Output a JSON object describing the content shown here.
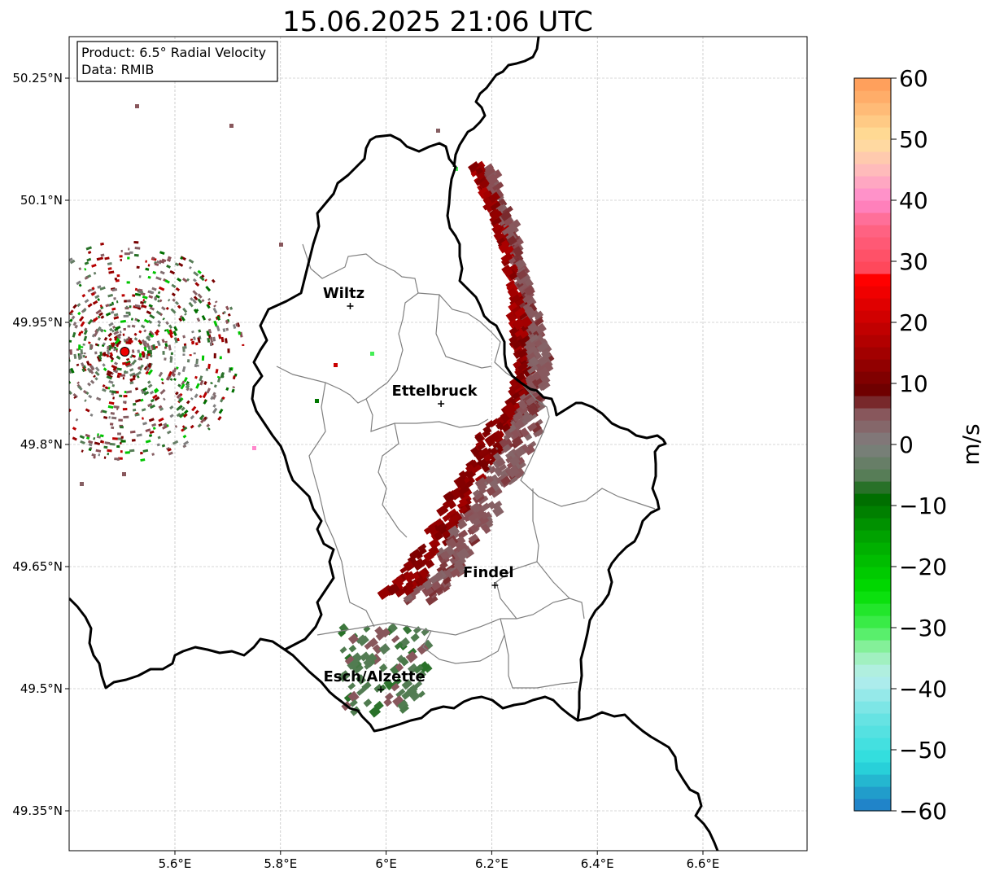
{
  "title": "15.06.2025 21:06 UTC",
  "info_box": {
    "product_line": "Product: 6.5° Radial Velocity",
    "data_line": "Data: RMIB"
  },
  "map": {
    "lon_range": [
      5.4,
      6.8
    ],
    "lat_range": [
      49.3,
      50.3
    ],
    "lon_ticks": [
      {
        "value": 5.6,
        "label": "5.6°E"
      },
      {
        "value": 5.8,
        "label": "5.8°E"
      },
      {
        "value": 6.0,
        "label": "6°E"
      },
      {
        "value": 6.2,
        "label": "6.2°E"
      },
      {
        "value": 6.4,
        "label": "6.4°E"
      },
      {
        "value": 6.6,
        "label": "6.6°E"
      }
    ],
    "lat_ticks": [
      {
        "value": 50.25,
        "label": "50.25°N"
      },
      {
        "value": 50.1,
        "label": "50.1°N"
      },
      {
        "value": 49.95,
        "label": "49.95°N"
      },
      {
        "value": 49.8,
        "label": "49.8°N"
      },
      {
        "value": 49.65,
        "label": "49.65°N"
      },
      {
        "value": 49.5,
        "label": "49.5°N"
      },
      {
        "value": 49.35,
        "label": "49.35°N"
      }
    ],
    "grid": true,
    "radar_site": {
      "lon": 5.505,
      "lat": 49.914
    },
    "cities": [
      {
        "name": "Wiltz",
        "lon": 5.932,
        "lat": 49.97
      },
      {
        "name": "Ettelbruck",
        "lon": 6.104,
        "lat": 49.85
      },
      {
        "name": "Findel",
        "lon": 6.206,
        "lat": 49.627
      },
      {
        "name": "Esch/Alzette",
        "lon": 5.99,
        "lat": 49.499
      }
    ]
  },
  "colorbar": {
    "label": "m/s",
    "range": [
      -60,
      60
    ],
    "ticks": [
      {
        "value": 60,
        "label": "60"
      },
      {
        "value": 50,
        "label": "50"
      },
      {
        "value": 40,
        "label": "40"
      },
      {
        "value": 30,
        "label": "30"
      },
      {
        "value": 20,
        "label": "20"
      },
      {
        "value": 10,
        "label": "10"
      },
      {
        "value": 0,
        "label": "0"
      },
      {
        "value": -10,
        "label": "−10"
      },
      {
        "value": -20,
        "label": "−20"
      },
      {
        "value": -30,
        "label": "−30"
      },
      {
        "value": -40,
        "label": "−40"
      },
      {
        "value": -50,
        "label": "−50"
      },
      {
        "value": -60,
        "label": "−60"
      }
    ],
    "color_stops": [
      {
        "value": -60,
        "color": "#1f77c8"
      },
      {
        "value": -56,
        "color": "#22aacc"
      },
      {
        "value": -52,
        "color": "#2adddd"
      },
      {
        "value": -45,
        "color": "#66e3e3"
      },
      {
        "value": -38,
        "color": "#b8eeee"
      },
      {
        "value": -34,
        "color": "#99f0b0"
      },
      {
        "value": -30,
        "color": "#44ee55"
      },
      {
        "value": -24,
        "color": "#00dd00"
      },
      {
        "value": -16,
        "color": "#00aa00"
      },
      {
        "value": -8,
        "color": "#006600"
      },
      {
        "value": -6,
        "color": "#4f7c4f"
      },
      {
        "value": 0,
        "color": "#7f7f7f"
      },
      {
        "value": 6,
        "color": "#8a4f55"
      },
      {
        "value": 8,
        "color": "#660000"
      },
      {
        "value": 16,
        "color": "#aa0000"
      },
      {
        "value": 27,
        "color": "#ff0000"
      },
      {
        "value": 28,
        "color": "#ff4455"
      },
      {
        "value": 36,
        "color": "#ff6688"
      },
      {
        "value": 40,
        "color": "#ff88cc"
      },
      {
        "value": 45,
        "color": "#ffbbbb"
      },
      {
        "value": 50,
        "color": "#ffe09a"
      },
      {
        "value": 55,
        "color": "#ffbb77"
      },
      {
        "value": 60,
        "color": "#ff9955"
      }
    ]
  },
  "colors": {
    "country_border": "#000000",
    "canton_border": "#808080",
    "grid": "#b0b0b0",
    "radar_dot": "#ee0000"
  }
}
